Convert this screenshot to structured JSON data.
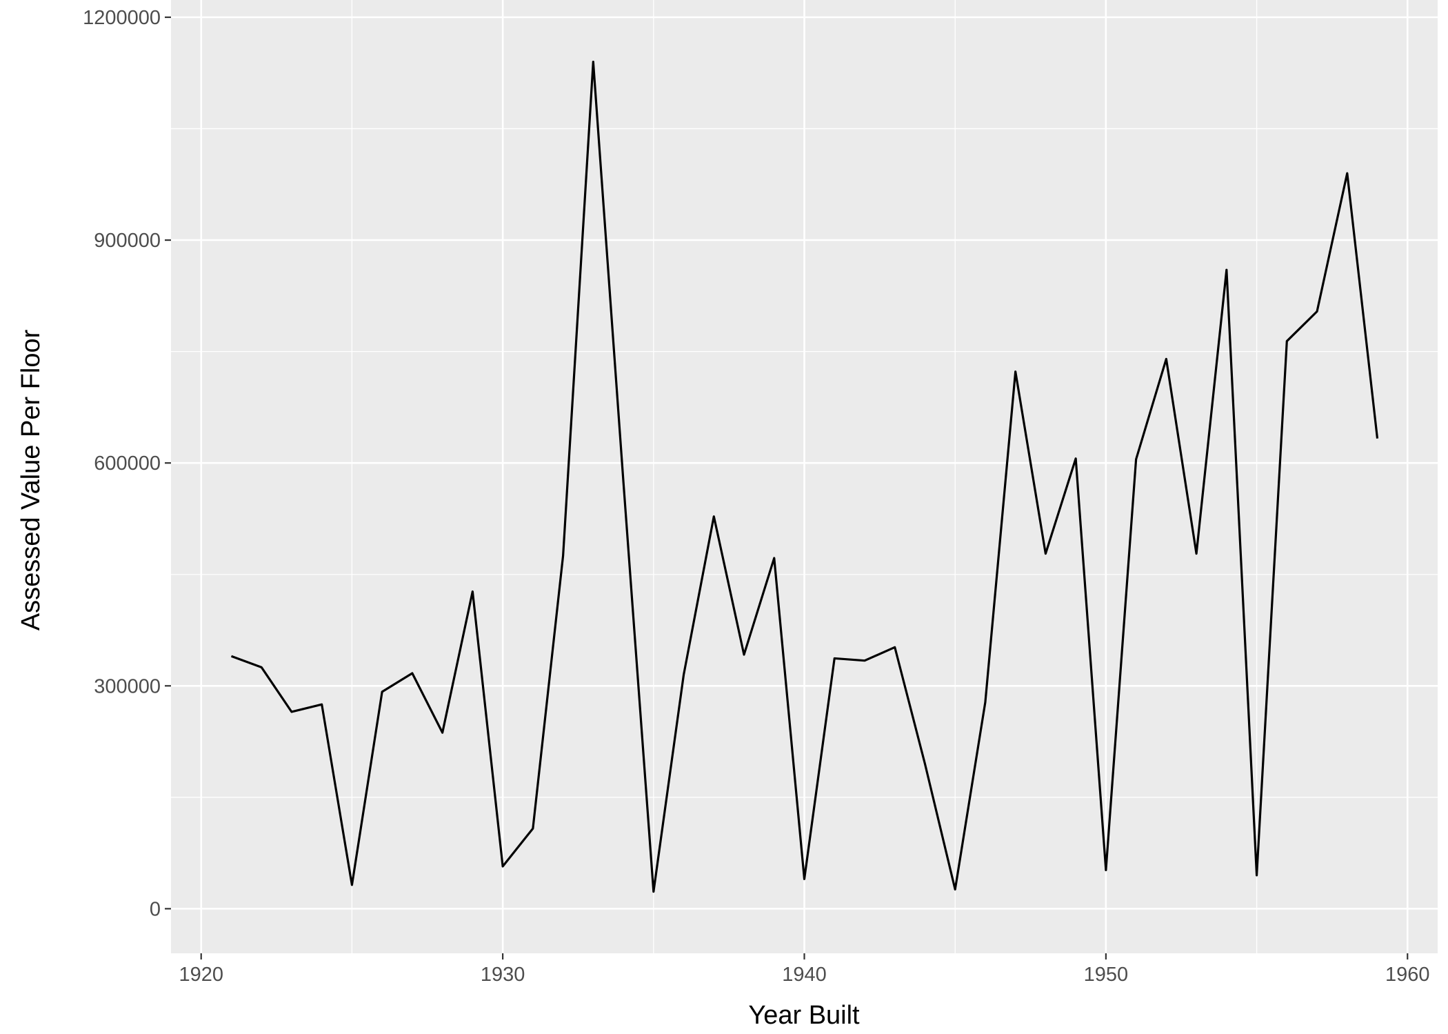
{
  "chart_data": {
    "type": "line",
    "title": "",
    "xlabel": "Year Built",
    "ylabel": "Assessed Value Per Floor",
    "xlim": [
      1919,
      1961
    ],
    "ylim": [
      -60000,
      1200000
    ],
    "x_ticks": [
      1920,
      1930,
      1940,
      1950,
      1960
    ],
    "y_ticks": [
      0,
      300000,
      600000,
      900000,
      1200000
    ],
    "x_tick_labels": [
      "1920",
      "1930",
      "1940",
      "1950",
      "1960"
    ],
    "y_tick_labels": [
      "0",
      "300000",
      "600000",
      "900000",
      "1200000"
    ],
    "grid": true,
    "colors": {
      "panel": "#ebebeb",
      "grid": "#ffffff",
      "line": "#000000",
      "tick": "#333333"
    },
    "series": [
      {
        "x": [
          1921,
          1922,
          1923,
          1924,
          1925,
          1926,
          1927,
          1928,
          1929,
          1930,
          1931,
          1932,
          1933,
          1934,
          1935,
          1936,
          1937,
          1938,
          1939,
          1940,
          1941,
          1942,
          1943,
          1944,
          1945,
          1946,
          1947,
          1948,
          1949,
          1950,
          1951,
          1952,
          1953,
          1954,
          1955,
          1956,
          1957,
          1958,
          1959
        ],
        "values": [
          340000,
          325000,
          265000,
          275000,
          32000,
          292000,
          317000,
          237000,
          427000,
          57000,
          108000,
          475000,
          1140000,
          575000,
          23000,
          315000,
          528000,
          342000,
          472000,
          40000,
          337000,
          334000,
          352000,
          195000,
          26000,
          278000,
          723000,
          478000,
          606000,
          52000,
          605000,
          740000,
          478000,
          860000,
          45000,
          764000,
          804000,
          990000,
          633000
        ]
      }
    ]
  }
}
